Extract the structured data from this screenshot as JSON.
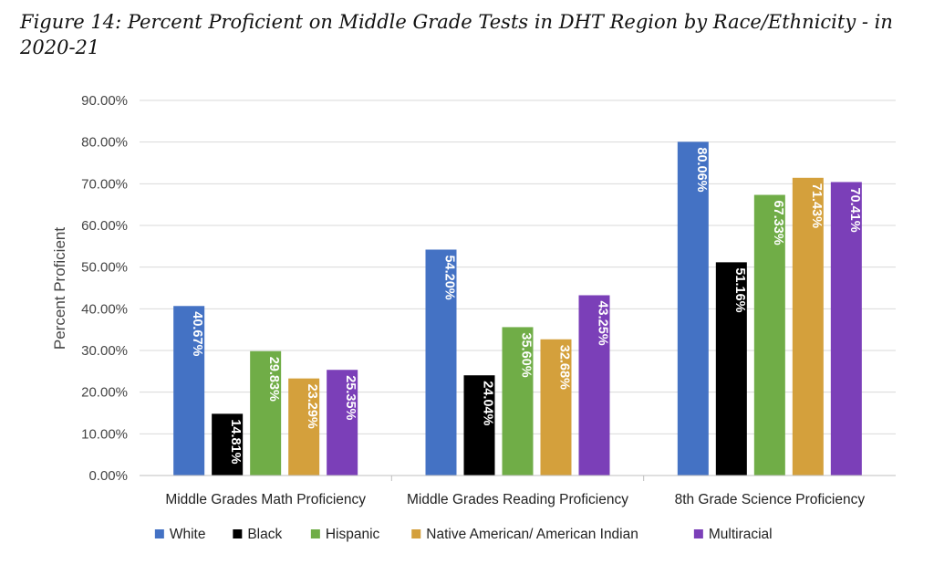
{
  "chart_data": {
    "type": "bar",
    "title": "Figure 14: Percent Proficient on Middle Grade Tests in DHT Region by Race/Ethnicity - in 2020-21",
    "ylabel": "Percent Proficient",
    "xlabel": "",
    "ylim": [
      0,
      90
    ],
    "yticks": [
      "0.00%",
      "10.00%",
      "20.00%",
      "30.00%",
      "40.00%",
      "50.00%",
      "60.00%",
      "70.00%",
      "80.00%",
      "90.00%"
    ],
    "grid": true,
    "legend_position": "bottom",
    "categories": [
      "Middle Grades Math Proficiency",
      "Middle Grades Reading Proficiency",
      "8th Grade Science Proficiency"
    ],
    "series": [
      {
        "name": "White",
        "color": "#4472C4",
        "values": [
          40.67,
          54.2,
          80.06
        ],
        "labels": [
          "40.67%",
          "54.20%",
          "80.06%"
        ]
      },
      {
        "name": "Black",
        "color": "#000000",
        "values": [
          14.81,
          24.04,
          51.16
        ],
        "labels": [
          "14.81%",
          "24.04%",
          "51.16%"
        ]
      },
      {
        "name": "Hispanic",
        "color": "#70AD47",
        "values": [
          29.83,
          35.6,
          67.33
        ],
        "labels": [
          "29.83%",
          "35.60%",
          "67.33%"
        ]
      },
      {
        "name": "Native American/ American Indian",
        "color": "#D4A03C",
        "values": [
          23.29,
          32.68,
          71.43
        ],
        "labels": [
          "23.29%",
          "32.68%",
          "71.43%"
        ]
      },
      {
        "name": "Multiracial",
        "color": "#7B3FB8",
        "values": [
          25.35,
          43.25,
          70.41
        ],
        "labels": [
          "25.35%",
          "43.25%",
          "70.41%"
        ]
      }
    ]
  }
}
